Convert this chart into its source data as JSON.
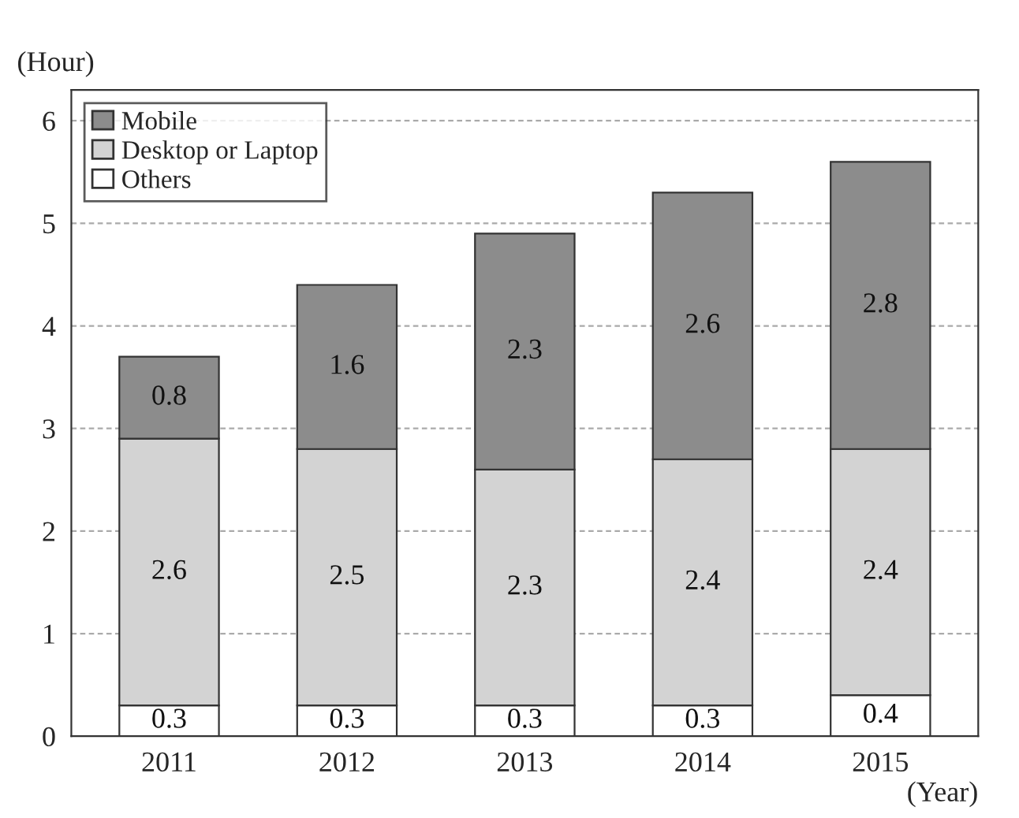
{
  "chart_data": {
    "type": "bar",
    "stacked": true,
    "ylabel": "(Hour)",
    "xlabel": "(Year)",
    "categories": [
      "2011",
      "2012",
      "2013",
      "2014",
      "2015"
    ],
    "series": [
      {
        "name": "Others",
        "color": "#ffffff",
        "values": [
          0.3,
          0.3,
          0.3,
          0.3,
          0.4
        ]
      },
      {
        "name": "Desktop or Laptop",
        "color": "#d3d3d3",
        "values": [
          2.6,
          2.5,
          2.3,
          2.4,
          2.4
        ]
      },
      {
        "name": "Mobile",
        "color": "#8c8c8c",
        "values": [
          0.8,
          1.6,
          2.3,
          2.6,
          2.8
        ]
      }
    ],
    "ylim": [
      0,
      6.3
    ],
    "yticks": [
      0,
      1,
      2,
      3,
      4,
      5,
      6
    ],
    "grid": "y",
    "legend": "top left",
    "data_labels": true
  }
}
